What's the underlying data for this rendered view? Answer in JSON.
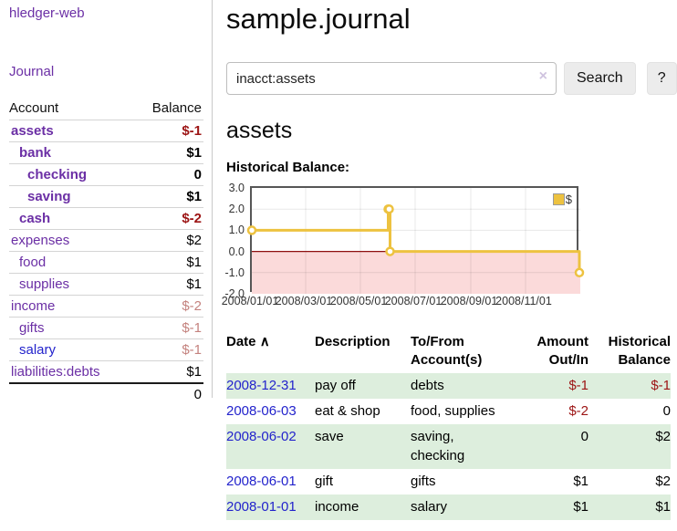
{
  "app": {
    "brand": "hledger-web"
  },
  "sidebar": {
    "nav_journal": "Journal",
    "accounts": {
      "col_account": "Account",
      "col_balance": "Balance",
      "rows": [
        {
          "name": "assets",
          "balance": "$-1",
          "indent": 0,
          "bold": true,
          "negative": "strong"
        },
        {
          "name": "bank",
          "balance": "$1",
          "indent": 1,
          "bold": true
        },
        {
          "name": "checking",
          "balance": "0",
          "indent": 2,
          "bold": true
        },
        {
          "name": "saving",
          "balance": "$1",
          "indent": 2,
          "bold": true
        },
        {
          "name": "cash",
          "balance": "$-2",
          "indent": 1,
          "bold": true,
          "negative": "strong"
        },
        {
          "name": "expenses",
          "balance": "$2",
          "indent": 0
        },
        {
          "name": "food",
          "balance": "$1",
          "indent": 1
        },
        {
          "name": "supplies",
          "balance": "$1",
          "indent": 1
        },
        {
          "name": "income",
          "balance": "$-2",
          "indent": 0,
          "negative": "soft"
        },
        {
          "name": "gifts",
          "balance": "$-1",
          "indent": 1,
          "negative": "soft"
        },
        {
          "name": "salary",
          "balance": "$-1",
          "indent": 1,
          "negative": "soft",
          "link_style": "blue"
        },
        {
          "name": "liabilities:debts",
          "balance": "$1",
          "indent": 0
        }
      ],
      "total": "0"
    }
  },
  "main": {
    "title": "sample.journal",
    "search": {
      "value": "inacct:assets",
      "clear": "×",
      "search_button": "Search",
      "help_button": "?"
    },
    "account_heading": "assets",
    "chart_title": "Historical Balance:"
  },
  "chart_data": {
    "type": "line",
    "step": true,
    "title": "Historical Balance:",
    "series": [
      {
        "name": "$",
        "color": "#edc240",
        "points": [
          [
            "2008-01-01",
            1
          ],
          [
            "2008-06-01",
            2
          ],
          [
            "2008-06-02",
            2
          ],
          [
            "2008-06-03",
            0
          ],
          [
            "2008-12-31",
            -1
          ]
        ]
      }
    ],
    "x_domain": [
      "2008-01-01",
      "2009-01-01"
    ],
    "x_tick_labels": [
      "2008/01/01",
      "2008/03/01",
      "2008/05/01",
      "2008/07/01",
      "2008/09/01",
      "2008/11/01"
    ],
    "y_ticks": [
      3.0,
      2.0,
      1.0,
      0.0,
      -1.0,
      -2.0
    ],
    "ylim": [
      -2.0,
      3.0
    ],
    "grid": true,
    "legend_position": "top-right",
    "negative_region_color": "#fbdada",
    "zero_line_color": "#8e1010"
  },
  "transactions": {
    "headers": {
      "date": "Date",
      "sort": "∧",
      "description": "Description",
      "accounts": "To/From Account(s)",
      "amount": "Amount Out/In",
      "balance": "Historical Balance"
    },
    "rows": [
      {
        "date": "2008-12-31",
        "description": "pay off",
        "accounts": "debts",
        "amount": "$-1",
        "balance": "$-1"
      },
      {
        "date": "2008-06-03",
        "description": "eat & shop",
        "accounts": "food, supplies",
        "amount": "$-2",
        "balance": "0"
      },
      {
        "date": "2008-06-02",
        "description": "save",
        "accounts": "saving, checking",
        "amount": "0",
        "balance": "$2"
      },
      {
        "date": "2008-06-01",
        "description": "gift",
        "accounts": "gifts",
        "amount": "$1",
        "balance": "$2"
      },
      {
        "date": "2008-01-01",
        "description": "income",
        "accounts": "salary",
        "amount": "$1",
        "balance": "$1"
      }
    ]
  }
}
